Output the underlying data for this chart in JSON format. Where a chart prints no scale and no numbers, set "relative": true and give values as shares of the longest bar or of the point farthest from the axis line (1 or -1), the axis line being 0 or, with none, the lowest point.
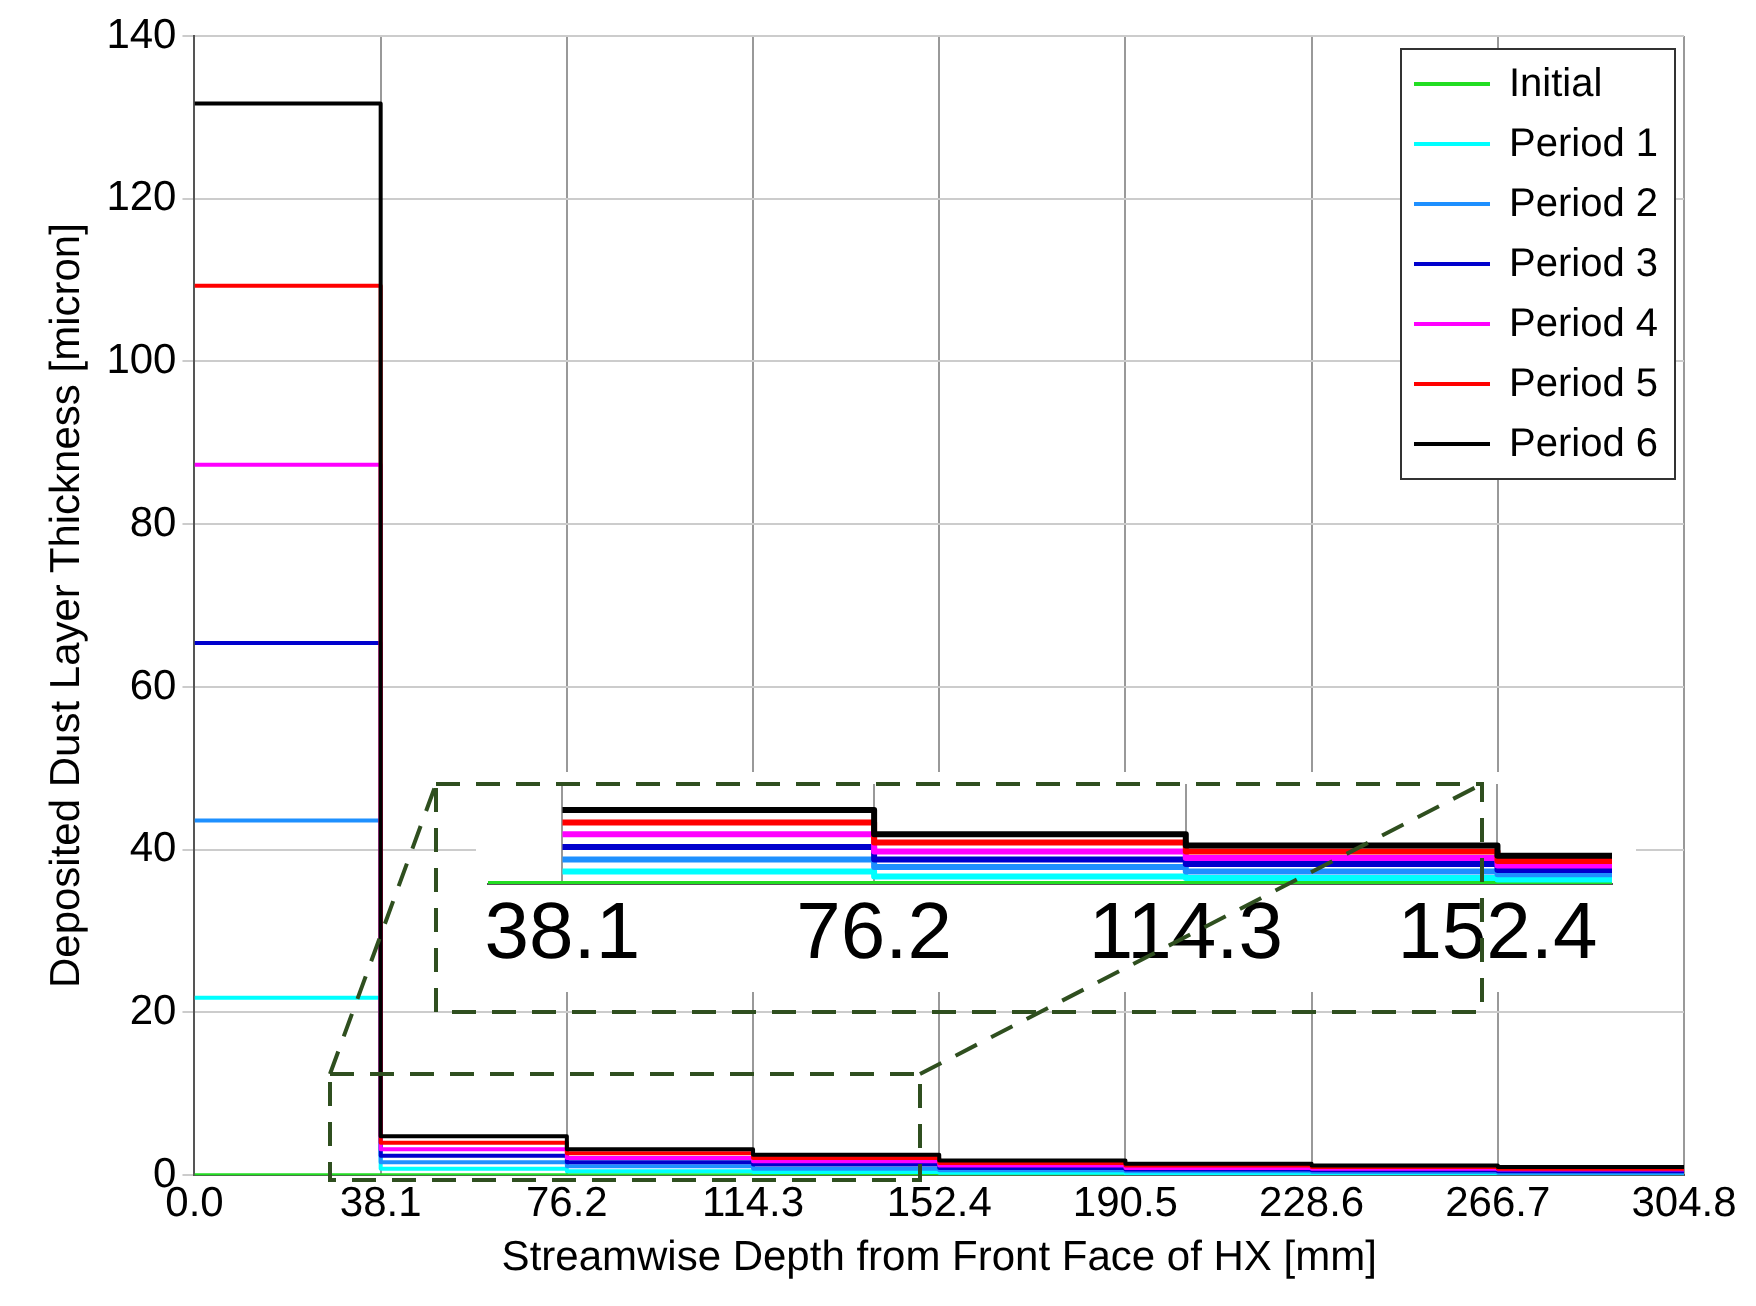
{
  "chart_data": [
    {
      "type": "step",
      "xlabel": "Streamwise Depth from Front Face of HX [mm]",
      "ylabel": "Deposited Dust Layer Thickness [micron]",
      "x": [
        0,
        38.1,
        76.2,
        114.3,
        152.4,
        190.5,
        228.6,
        266.7,
        304.8
      ],
      "series": [
        {
          "name": "Initial",
          "color": "#22dd22",
          "values": [
            0,
            0,
            0,
            0,
            0,
            0,
            null,
            null,
            null
          ]
        },
        {
          "name": "Period 1",
          "color": "#00ffff",
          "values": [
            21.8,
            0.8,
            0.5,
            0.4,
            0.3,
            0.2,
            0.2,
            0.2,
            0.2
          ]
        },
        {
          "name": "Period 2",
          "color": "#1e90ff",
          "values": [
            43.6,
            1.6,
            1.1,
            0.8,
            0.6,
            0.5,
            0.4,
            0.3,
            0.3
          ]
        },
        {
          "name": "Period 3",
          "color": "#0000cd",
          "values": [
            65.4,
            2.4,
            1.6,
            1.3,
            0.9,
            0.7,
            0.6,
            0.5,
            0.5
          ]
        },
        {
          "name": "Period 4",
          "color": "#ff00ff",
          "values": [
            87.3,
            3.2,
            2.1,
            1.7,
            1.2,
            0.9,
            0.8,
            0.7,
            0.7
          ]
        },
        {
          "name": "Period 5",
          "color": "#ff0000",
          "values": [
            109.3,
            4.0,
            2.7,
            2.1,
            1.5,
            1.2,
            1.0,
            0.8,
            0.8
          ]
        },
        {
          "name": "Period 6",
          "color": "#000000",
          "values": [
            131.7,
            4.8,
            3.2,
            2.5,
            1.8,
            1.4,
            1.2,
            1.0,
            1.0
          ]
        }
      ],
      "xlim": [
        0,
        304.8
      ],
      "xticks": [
        {
          "value": 0,
          "label": "0.0"
        },
        38.1,
        76.2,
        114.3,
        152.4,
        190.5,
        228.6,
        266.7,
        304.8
      ],
      "ylim": [
        0,
        140
      ],
      "yticks": [
        0,
        20,
        40,
        60,
        80,
        100,
        120,
        140
      ],
      "grid": true,
      "legend": "top right"
    },
    {
      "type": "step",
      "tick_labels": "x",
      "x": [
        38.1,
        76.2,
        114.3,
        152.4,
        166.4
      ],
      "series": [
        {
          "color": "#22dd22",
          "x": [
            29,
            166.4
          ],
          "values": [
            0,
            0
          ]
        },
        {
          "color": "#00ffff",
          "values": [
            0.17,
            0.1,
            0.08,
            0.06,
            0.06
          ]
        },
        {
          "color": "#1e90ff",
          "values": [
            0.33,
            0.23,
            0.17,
            0.13,
            0.13
          ]
        },
        {
          "color": "#0000cd",
          "values": [
            0.5,
            0.33,
            0.27,
            0.19,
            0.19
          ]
        },
        {
          "color": "#ff00ff",
          "values": [
            0.67,
            0.44,
            0.35,
            0.25,
            0.25
          ]
        },
        {
          "color": "#ff0000",
          "values": [
            0.83,
            0.56,
            0.44,
            0.31,
            0.31
          ]
        },
        {
          "color": "#000000",
          "values": [
            1,
            0.67,
            0.52,
            0.38,
            0.38
          ]
        }
      ],
      "xlim": [
        29,
        166.4
      ],
      "xticks": [
        38.1,
        76.2,
        114.3,
        152.4
      ],
      "relative": true,
      "grid": "x"
    }
  ]
}
